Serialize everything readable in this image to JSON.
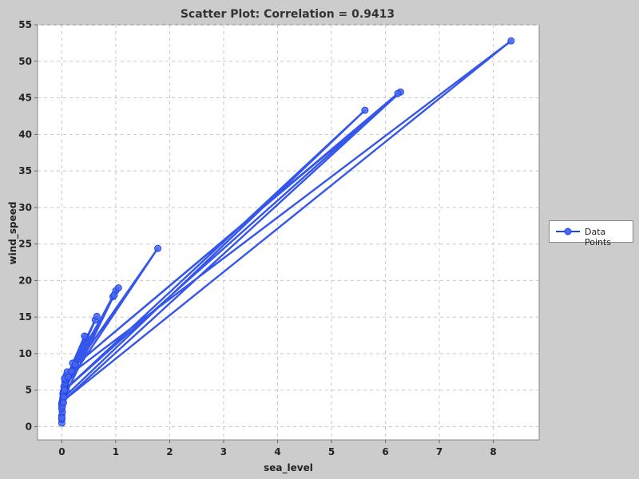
{
  "chart_data": {
    "type": "scatter",
    "title": "Scatter Plot: Correlation = 0.9413",
    "xlabel": "sea_level",
    "ylabel": "wind_speed",
    "xlim": [
      -0.45,
      8.85
    ],
    "ylim": [
      -1.8,
      55
    ],
    "xticks": [
      0,
      1,
      2,
      3,
      4,
      5,
      6,
      7,
      8
    ],
    "yticks": [
      0,
      5,
      10,
      15,
      20,
      25,
      30,
      35,
      40,
      45,
      50,
      55
    ],
    "grid": true,
    "legend_position": "right",
    "connected": true,
    "series": [
      {
        "name": "Data Points",
        "color": "#1f44e8",
        "x": [
          0.0,
          0.0,
          0.0,
          0.01,
          0.0,
          0.0,
          0.01,
          0.02,
          0.0,
          0.03,
          0.01,
          0.04,
          0.02,
          0.05,
          0.08,
          0.06,
          0.05,
          0.1,
          0.03,
          0.15,
          0.08,
          0.2,
          0.02,
          0.45,
          0.05,
          0.62,
          0.03,
          0.95,
          1.0,
          0.05,
          1.78,
          0.06,
          1.05,
          0.04,
          0.65,
          0.06,
          0.42,
          0.07,
          0.25,
          0.08,
          0.13,
          0.05,
          8.33,
          0.02,
          6.28,
          0.1,
          6.23,
          0.05,
          5.62,
          0.04,
          0.97,
          0.12,
          0.18,
          0.03,
          0.0
        ],
        "y": [
          0.5,
          1.0,
          1.5,
          2.0,
          2.5,
          3.0,
          3.5,
          4.0,
          3.2,
          4.5,
          2.8,
          5.0,
          3.8,
          5.5,
          6.3,
          5.8,
          5.2,
          6.8,
          4.2,
          7.3,
          5.0,
          8.7,
          4.5,
          12.3,
          5.6,
          14.6,
          4.8,
          17.8,
          18.6,
          5.3,
          24.4,
          6.2,
          19.0,
          5.5,
          15.1,
          6.0,
          12.4,
          6.4,
          8.5,
          7.0,
          7.2,
          6.6,
          52.8,
          3.5,
          45.8,
          7.5,
          45.6,
          5.0,
          43.3,
          4.0,
          18.0,
          6.8,
          7.6,
          3.3,
          1.2
        ]
      }
    ]
  }
}
